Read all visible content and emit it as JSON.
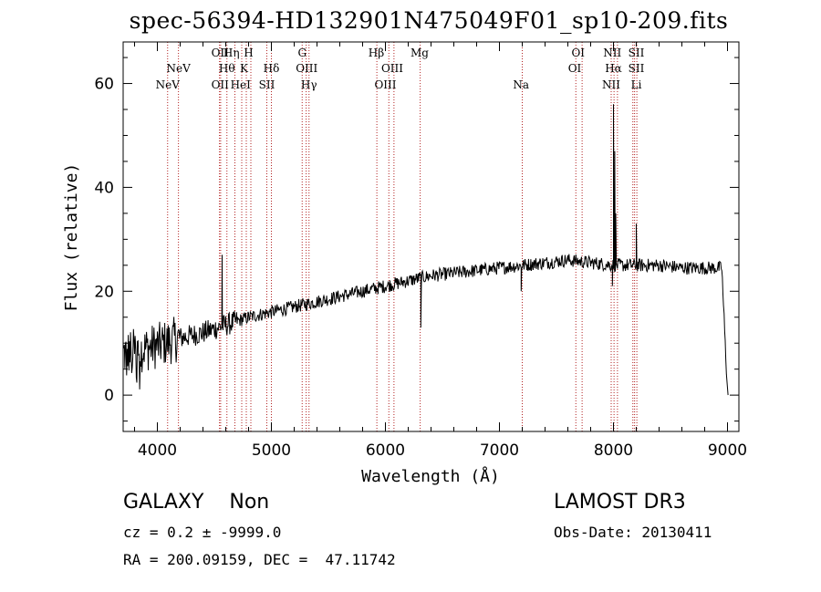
{
  "title": "spec-56394-HD132901N475049F01_sp10-209.fits",
  "chart_data": {
    "type": "line",
    "title": "spec-56394-HD132901N475049F01_sp10-209.fits",
    "xlabel": "Wavelength (Å)",
    "ylabel": "Flux (relative)",
    "xlim": [
      3700,
      9100
    ],
    "ylim": [
      -7,
      68
    ],
    "x_ticks": [
      4000,
      5000,
      6000,
      7000,
      8000,
      9000
    ],
    "y_ticks": [
      0,
      20,
      40,
      60
    ],
    "series": [
      {
        "name": "spectrum",
        "continuum_points": {
          "x": [
            3700,
            3800,
            4000,
            4200,
            4400,
            4600,
            4800,
            5000,
            5200,
            5400,
            5600,
            5800,
            6000,
            6200,
            6400,
            6600,
            6800,
            7000,
            7200,
            7400,
            7600,
            7800,
            8000,
            8200,
            8400,
            8600,
            8800,
            8950,
            9000
          ],
          "y": [
            8,
            8.5,
            9.5,
            11,
            12,
            13.5,
            15,
            16,
            17,
            18,
            19,
            20,
            21,
            22,
            23,
            23.5,
            24,
            24.5,
            25,
            25.5,
            26,
            25.5,
            25,
            25,
            25,
            24.5,
            24.5,
            24.5,
            0
          ]
        },
        "features": [
          {
            "x": 4568,
            "y": 27
          },
          {
            "x": 6310,
            "y": 13
          },
          {
            "x": 7190,
            "y": 20
          },
          {
            "x": 8000,
            "y": 56
          },
          {
            "x": 8011,
            "y": 47
          },
          {
            "x": 8020,
            "y": 35
          },
          {
            "x": 8200,
            "y": 33
          },
          {
            "x": 7990,
            "y": 21
          },
          {
            "x": 9005,
            "y": 0
          }
        ]
      }
    ],
    "line_ids": [
      {
        "label": "NeV",
        "x": 4090,
        "row": 3
      },
      {
        "label": "NeV",
        "x": 4185,
        "row": 2
      },
      {
        "label": "OII",
        "x": 4550,
        "row": 1
      },
      {
        "label": "OII",
        "x": 4550,
        "row": 3
      },
      {
        "label": "Hη",
        "x": 4650,
        "row": 1
      },
      {
        "label": "Hθ",
        "x": 4610,
        "row": 2
      },
      {
        "label": "HeI",
        "x": 4730,
        "row": 3
      },
      {
        "label": "H",
        "x": 4800,
        "row": 1
      },
      {
        "label": "K",
        "x": 4760,
        "row": 2
      },
      {
        "label": "Hδ",
        "x": 5000,
        "row": 2
      },
      {
        "label": "SII",
        "x": 4960,
        "row": 3
      },
      {
        "label": "G",
        "x": 5270,
        "row": 1
      },
      {
        "label": "OIII",
        "x": 5310,
        "row": 2
      },
      {
        "label": "Hγ",
        "x": 5330,
        "row": 3
      },
      {
        "label": "Hβ",
        "x": 5920,
        "row": 1
      },
      {
        "label": "OIII",
        "x": 6060,
        "row": 2
      },
      {
        "label": "OIII",
        "x": 6000,
        "row": 3
      },
      {
        "label": "Mg",
        "x": 6300,
        "row": 1
      },
      {
        "label": "Na",
        "x": 7190,
        "row": 3
      },
      {
        "label": "OI",
        "x": 7690,
        "row": 1
      },
      {
        "label": "OI",
        "x": 7660,
        "row": 2
      },
      {
        "label": "NII",
        "x": 7990,
        "row": 1
      },
      {
        "label": "Hα",
        "x": 8000,
        "row": 2
      },
      {
        "label": "NII",
        "x": 7980,
        "row": 3
      },
      {
        "label": "SII",
        "x": 8200,
        "row": 1
      },
      {
        "label": "SII",
        "x": 8200,
        "row": 2
      },
      {
        "label": "Li",
        "x": 8200,
        "row": 3
      }
    ],
    "marker_lines_x": [
      4090,
      4185,
      4545,
      4555,
      4610,
      4680,
      4740,
      4780,
      4820,
      4960,
      5000,
      5270,
      5305,
      5330,
      5925,
      6030,
      6075,
      6305,
      7200,
      7670,
      7725,
      7980,
      8005,
      8035,
      8170,
      8185,
      8205
    ]
  },
  "info": {
    "class_line": "GALAXY    Non",
    "survey": "LAMOST DR3",
    "cz": "cz = 0.2 ± -9999.0",
    "obs_date": "Obs-Date: 20130411",
    "radec": "RA = 200.09159, DEC =  47.11742"
  }
}
